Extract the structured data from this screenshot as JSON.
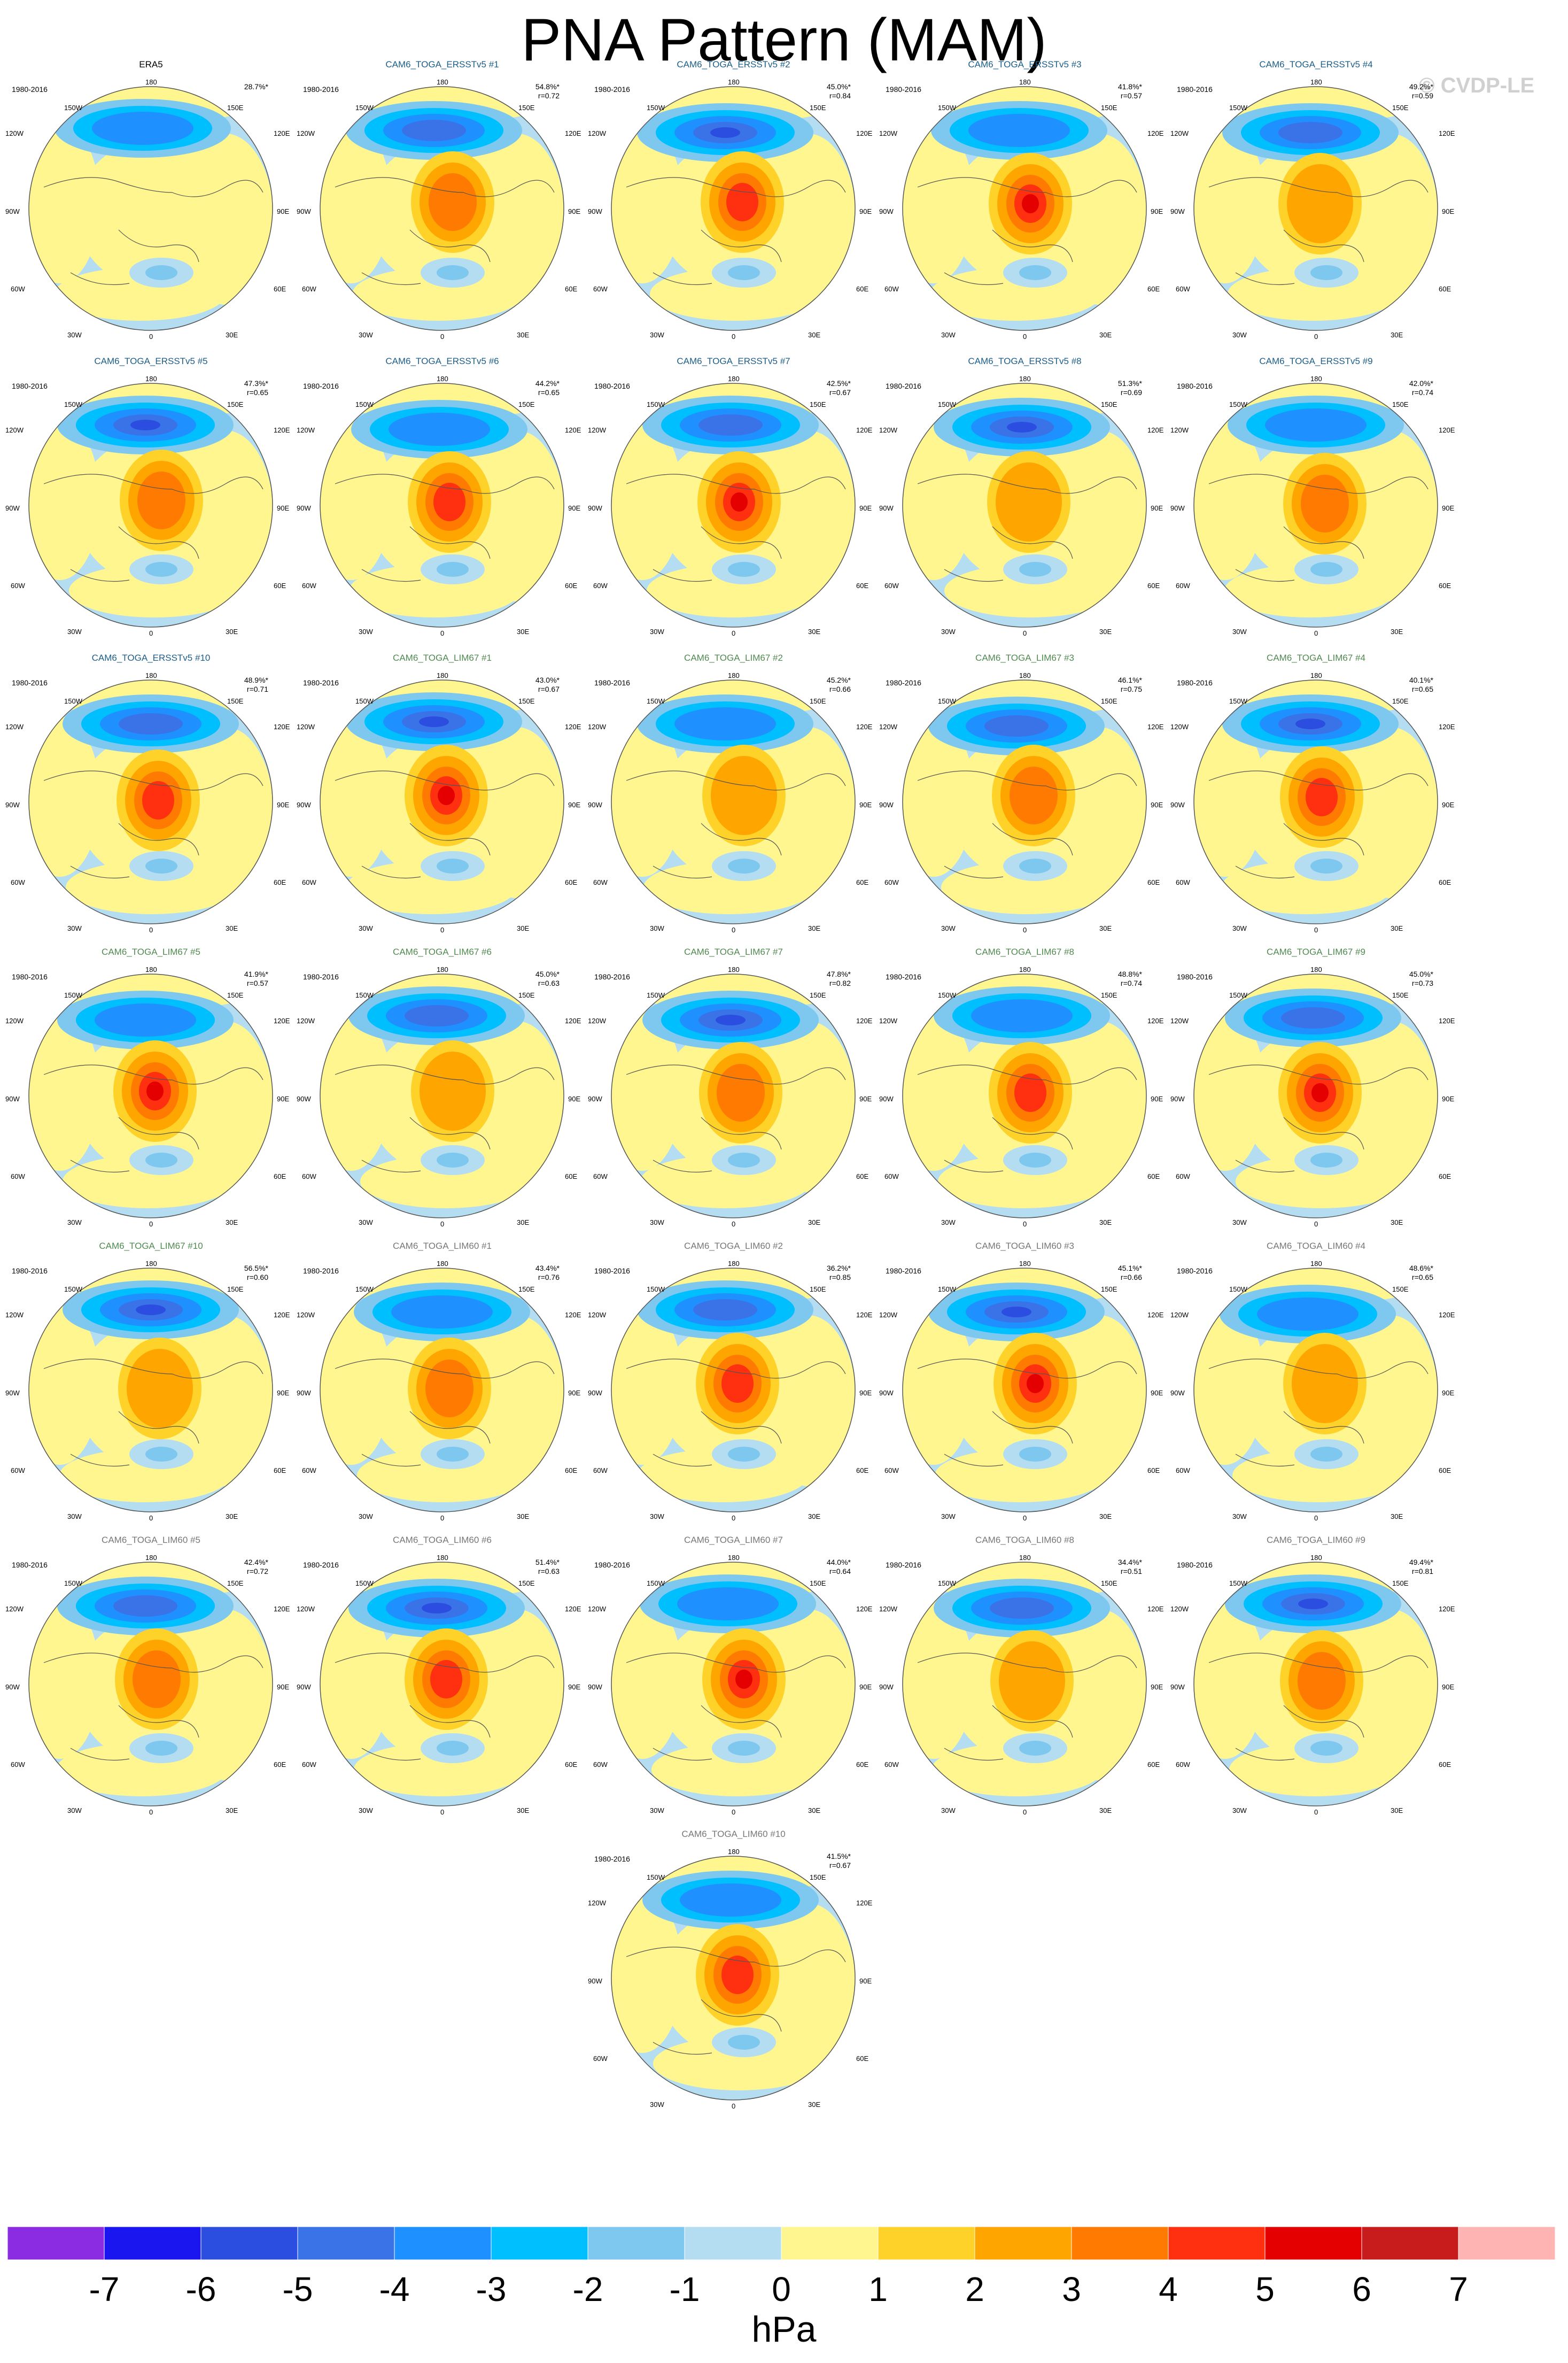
{
  "title": "PNA Pattern (MAM)",
  "watermark": "© CVDP-LE",
  "period": "1980-2016",
  "lon_labels": [
    "180",
    "150E",
    "120E",
    "90E",
    "60E",
    "30E",
    "0",
    "30W",
    "60W",
    "90W",
    "120W",
    "150W"
  ],
  "colorbar": {
    "units": "hPa",
    "tick_labels": [
      "-7",
      "-6",
      "-5",
      "-4",
      "-3",
      "-2",
      "-1",
      "0",
      "1",
      "2",
      "3",
      "4",
      "5",
      "6",
      "7"
    ],
    "colors": [
      "#8b2be2",
      "#1a16f0",
      "#2b4ee0",
      "#3a73e8",
      "#1e90ff",
      "#00bfff",
      "#7ec8f0",
      "#b4ddf2",
      "#fff68f",
      "#ffd22a",
      "#ffa500",
      "#ff7a00",
      "#ff3010",
      "#e40000",
      "#c81c1c",
      "#ffb4b4"
    ]
  },
  "panels": [
    {
      "title": "ERA5",
      "group": "obs",
      "pct": "28.7%*",
      "r": ""
    },
    {
      "title": "CAM6_TOGA_ERSSTv5 #1",
      "group": "ersst",
      "pct": "54.8%*",
      "r": "r=0.72"
    },
    {
      "title": "CAM6_TOGA_ERSSTv5 #2",
      "group": "ersst",
      "pct": "45.0%*",
      "r": "r=0.84"
    },
    {
      "title": "CAM6_TOGA_ERSSTv5 #3",
      "group": "ersst",
      "pct": "41.8%*",
      "r": "r=0.57"
    },
    {
      "title": "CAM6_TOGA_ERSSTv5 #4",
      "group": "ersst",
      "pct": "49.2%*",
      "r": "r=0.59"
    },
    {
      "title": "CAM6_TOGA_ERSSTv5 #5",
      "group": "ersst",
      "pct": "47.3%*",
      "r": "r=0.65"
    },
    {
      "title": "CAM6_TOGA_ERSSTv5 #6",
      "group": "ersst",
      "pct": "44.2%*",
      "r": "r=0.65"
    },
    {
      "title": "CAM6_TOGA_ERSSTv5 #7",
      "group": "ersst",
      "pct": "42.5%*",
      "r": "r=0.67"
    },
    {
      "title": "CAM6_TOGA_ERSSTv5 #8",
      "group": "ersst",
      "pct": "51.3%*",
      "r": "r=0.69"
    },
    {
      "title": "CAM6_TOGA_ERSSTv5 #9",
      "group": "ersst",
      "pct": "42.0%*",
      "r": "r=0.74"
    },
    {
      "title": "CAM6_TOGA_ERSSTv5 #10",
      "group": "ersst",
      "pct": "48.9%*",
      "r": "r=0.71"
    },
    {
      "title": "CAM6_TOGA_LIM67 #1",
      "group": "lim67",
      "pct": "43.0%*",
      "r": "r=0.67"
    },
    {
      "title": "CAM6_TOGA_LIM67 #2",
      "group": "lim67",
      "pct": "45.2%*",
      "r": "r=0.66"
    },
    {
      "title": "CAM6_TOGA_LIM67 #3",
      "group": "lim67",
      "pct": "46.1%*",
      "r": "r=0.75"
    },
    {
      "title": "CAM6_TOGA_LIM67 #4",
      "group": "lim67",
      "pct": "40.1%*",
      "r": "r=0.65"
    },
    {
      "title": "CAM6_TOGA_LIM67 #5",
      "group": "lim67",
      "pct": "41.9%*",
      "r": "r=0.57"
    },
    {
      "title": "CAM6_TOGA_LIM67 #6",
      "group": "lim67",
      "pct": "45.0%*",
      "r": "r=0.63"
    },
    {
      "title": "CAM6_TOGA_LIM67 #7",
      "group": "lim67",
      "pct": "47.8%*",
      "r": "r=0.82"
    },
    {
      "title": "CAM6_TOGA_LIM67 #8",
      "group": "lim67",
      "pct": "48.8%*",
      "r": "r=0.74"
    },
    {
      "title": "CAM6_TOGA_LIM67 #9",
      "group": "lim67",
      "pct": "45.0%*",
      "r": "r=0.73"
    },
    {
      "title": "CAM6_TOGA_LIM67 #10",
      "group": "lim67",
      "pct": "56.5%*",
      "r": "r=0.60"
    },
    {
      "title": "CAM6_TOGA_LIM60 #1",
      "group": "lim60",
      "pct": "43.4%*",
      "r": "r=0.76"
    },
    {
      "title": "CAM6_TOGA_LIM60 #2",
      "group": "lim60",
      "pct": "36.2%*",
      "r": "r=0.85"
    },
    {
      "title": "CAM6_TOGA_LIM60 #3",
      "group": "lim60",
      "pct": "45.1%*",
      "r": "r=0.66"
    },
    {
      "title": "CAM6_TOGA_LIM60 #4",
      "group": "lim60",
      "pct": "48.6%*",
      "r": "r=0.65"
    },
    {
      "title": "CAM6_TOGA_LIM60 #5",
      "group": "lim60",
      "pct": "42.4%*",
      "r": "r=0.72"
    },
    {
      "title": "CAM6_TOGA_LIM60 #6",
      "group": "lim60",
      "pct": "51.4%*",
      "r": "r=0.63"
    },
    {
      "title": "CAM6_TOGA_LIM60 #7",
      "group": "lim60",
      "pct": "44.0%*",
      "r": "r=0.64"
    },
    {
      "title": "CAM6_TOGA_LIM60 #8",
      "group": "lim60",
      "pct": "34.4%*",
      "r": "r=0.51"
    },
    {
      "title": "CAM6_TOGA_LIM60 #9",
      "group": "lim60",
      "pct": "49.4%*",
      "r": "r=0.81"
    },
    {
      "title": "CAM6_TOGA_LIM60 #10",
      "group": "lim60",
      "pct": "41.5%*",
      "r": "r=0.67"
    }
  ]
}
